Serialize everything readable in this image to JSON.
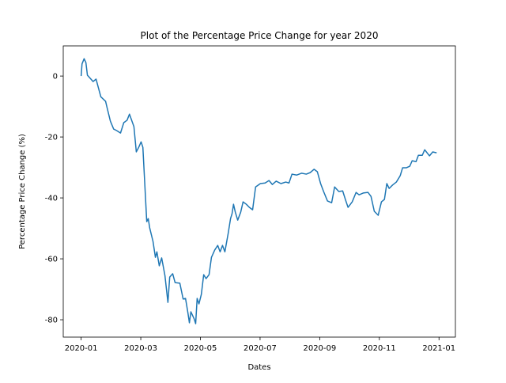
{
  "chart_data": {
    "type": "line",
    "title": "Plot of the Percentage Price Change for year 2020",
    "x_label": "Dates",
    "y_label": "Percentage Price Change (%)",
    "x": [
      0,
      0.03,
      0.1,
      0.16,
      0.21,
      0.4,
      0.5,
      0.66,
      0.82,
      0.87,
      0.98,
      1.09,
      1.19,
      1.32,
      1.43,
      1.54,
      1.62,
      1.77,
      1.85,
      1.93,
      2.01,
      2.07,
      2.2,
      2.25,
      2.3,
      2.41,
      2.49,
      2.54,
      2.62,
      2.7,
      2.81,
      2.91,
      2.97,
      3.07,
      3.15,
      3.31,
      3.42,
      3.5,
      3.58,
      3.63,
      3.68,
      3.79,
      3.84,
      3.89,
      3.95,
      4.03,
      4.11,
      4.19,
      4.29,
      4.37,
      4.48,
      4.58,
      4.66,
      4.74,
      4.82,
      4.93,
      5.01,
      5.06,
      5.11,
      5.17,
      5.25,
      5.35,
      5.43,
      5.54,
      5.64,
      5.75,
      5.85,
      6.01,
      6.17,
      6.3,
      6.41,
      6.54,
      6.7,
      6.86,
      6.97,
      7.07,
      7.23,
      7.39,
      7.55,
      7.68,
      7.81,
      7.92,
      8.03,
      8.13,
      8.26,
      8.4,
      8.5,
      8.64,
      8.77,
      8.87,
      8.95,
      9.09,
      9.22,
      9.32,
      9.46,
      9.62,
      9.72,
      9.83,
      9.96,
      10.07,
      10.17,
      10.25,
      10.33,
      10.44,
      10.57,
      10.7,
      10.78,
      10.91,
      11.02,
      11.1,
      11.23,
      11.31,
      11.44,
      11.52,
      11.68,
      11.79,
      11.92
    ],
    "series": [
      {
        "name": "Percentage Price Change",
        "color": "#1f77b4",
        "values": [
          0,
          4,
          5.7,
          4.4,
          0.3,
          -1.8,
          -1,
          -6.8,
          -8.3,
          -10.4,
          -14.8,
          -17.4,
          -17.9,
          -18.7,
          -15.3,
          -14.5,
          -12.5,
          -16.6,
          -24.9,
          -23.4,
          -21.6,
          -23.4,
          -47.8,
          -46.8,
          -49.9,
          -54.3,
          -59.5,
          -57.7,
          -62.3,
          -59.7,
          -65.5,
          -74.3,
          -66,
          -64.9,
          -67.8,
          -68,
          -73.2,
          -73,
          -77.7,
          -81,
          -77.4,
          -79.7,
          -81.3,
          -73,
          -74.8,
          -71.7,
          -65.2,
          -66.5,
          -65.2,
          -59.5,
          -57.1,
          -55.6,
          -57.7,
          -55.6,
          -57.7,
          -51.7,
          -46.8,
          -45.2,
          -42.1,
          -44.7,
          -47.3,
          -44.7,
          -41.3,
          -42.1,
          -43.1,
          -43.9,
          -36.4,
          -35.3,
          -35.1,
          -34.3,
          -35.6,
          -34.5,
          -35.3,
          -34.8,
          -35.1,
          -32.2,
          -32.5,
          -31.9,
          -32.2,
          -31.7,
          -30.6,
          -31.4,
          -35.3,
          -37.9,
          -41,
          -41.6,
          -36.4,
          -37.9,
          -37.7,
          -40.8,
          -43.1,
          -41.3,
          -38.2,
          -39,
          -38.4,
          -38.2,
          -39.5,
          -44.4,
          -45.7,
          -41.3,
          -40.5,
          -35.3,
          -36.9,
          -35.8,
          -34.8,
          -32.7,
          -30.1,
          -30.1,
          -29.6,
          -27.8,
          -28.1,
          -26,
          -26,
          -24.2,
          -26.2,
          -24.9,
          -25.2
        ]
      }
    ],
    "xlim": [
      -0.6,
      12.55
    ],
    "xticks": [
      {
        "value": 0,
        "label": "2020-01"
      },
      {
        "value": 2,
        "label": "2020-03"
      },
      {
        "value": 4,
        "label": "2020-05"
      },
      {
        "value": 6,
        "label": "2020-07"
      },
      {
        "value": 8,
        "label": "2020-09"
      },
      {
        "value": 10,
        "label": "2020-11"
      },
      {
        "value": 12,
        "label": "2021-01"
      }
    ],
    "ylim": [
      -85.7,
      9.9
    ],
    "yticks": [
      -80,
      -60,
      -40,
      -20,
      0
    ],
    "grid": false
  }
}
